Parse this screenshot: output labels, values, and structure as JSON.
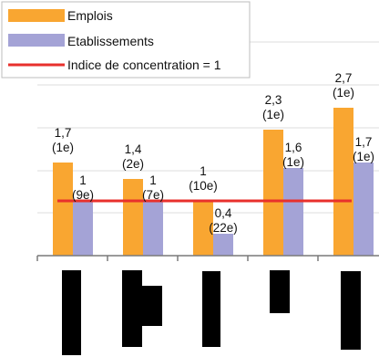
{
  "chart_data": {
    "type": "bar",
    "title": "",
    "xlabel": "",
    "ylabel": "",
    "ylim": [
      0,
      2.7
    ],
    "grid": true,
    "legend_position": "top-left",
    "categories": [
      "",
      "",
      "",
      "",
      ""
    ],
    "series": [
      {
        "name": "Emplois",
        "color": "#f9a631",
        "values": [
          1.7,
          1.4,
          1.0,
          2.3,
          2.7
        ],
        "labels": [
          "1,7",
          "1,4",
          "1",
          "2,3",
          "2,7"
        ],
        "ranks": [
          "(1e)",
          "(2e)",
          "(10e)",
          "(1e)",
          "(1e)"
        ]
      },
      {
        "name": "Etablissements",
        "color": "#a4a3d6",
        "values": [
          1.0,
          1.0,
          0.4,
          1.6,
          1.7
        ],
        "labels": [
          "1",
          "1",
          "0,4",
          "1,6",
          "1,7"
        ],
        "ranks": [
          "(9e)",
          "(7e)",
          "(22e)",
          "(1e)",
          "(1e)"
        ]
      }
    ],
    "reference_line": {
      "name": "Indice de concentration = 1",
      "value": 1,
      "color": "#e8302c"
    },
    "category_icons": [
      "black-rectangle-icon",
      "black-rectangles-icon",
      "black-rectangle-icon",
      "black-rectangle-icon",
      "black-rectangle-icon"
    ]
  }
}
